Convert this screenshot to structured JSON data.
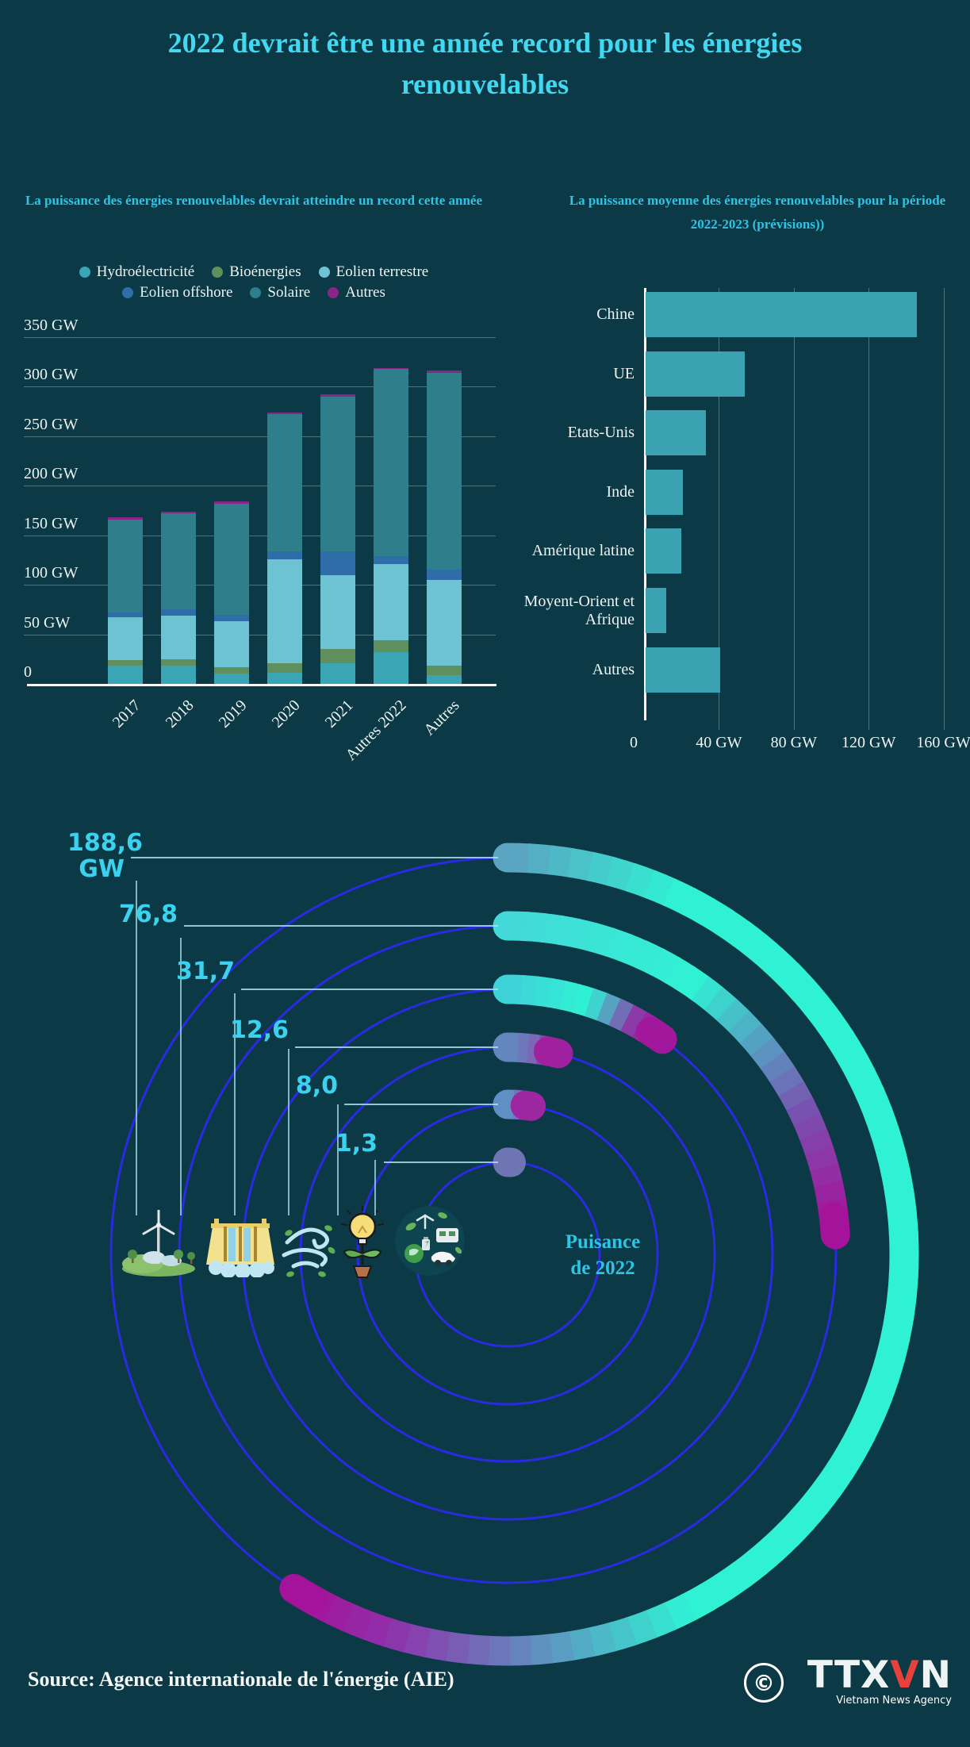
{
  "page": {
    "background": "#0b3945",
    "accent_cyan": "#41d9f2"
  },
  "header": {
    "title_line1": "2022 devrait être une année record pour les énergies",
    "title_line2": "renouvelables"
  },
  "chart_data": [
    {
      "type": "bar",
      "stacked": true,
      "title": "La puissance des énergies renouvelables devrait atteindre un record cette année",
      "categories": [
        "2017",
        "2018",
        "2019",
        "2020",
        "2021",
        "Autres 2022",
        "Autres"
      ],
      "series": [
        {
          "name": "Hydroélectricité",
          "color": "#3aa5b5",
          "values": [
            18,
            18,
            10,
            11,
            21,
            31.7,
            9
          ]
        },
        {
          "name": "Bioénergies",
          "color": "#5f8f5c",
          "values": [
            6,
            7,
            7,
            10,
            14,
            12.6,
            9
          ]
        },
        {
          "name": "Eolien terrestre",
          "color": "#6ec3d2",
          "values": [
            43,
            44,
            46,
            105,
            75,
            76.8,
            87
          ]
        },
        {
          "name": "Eolien offshore",
          "color": "#2e6da8",
          "values": [
            5,
            6,
            7,
            8,
            24,
            8,
            10
          ]
        },
        {
          "name": "Solaire",
          "color": "#2e7e8b",
          "values": [
            94,
            97,
            112,
            138,
            156,
            188.6,
            199
          ]
        },
        {
          "name": "Autres",
          "color": "#8b2489",
          "values": [
            2,
            2,
            2,
            2,
            2,
            1.3,
            2
          ]
        }
      ],
      "ylim": [
        0,
        350
      ],
      "yticks": [
        0,
        50,
        100,
        150,
        200,
        250,
        300,
        350
      ],
      "ytick_suffix": " GW",
      "grid": true,
      "legend_rows": [
        [
          "Hydroélectricité",
          "Bioénergies",
          "Eolien terrestre"
        ],
        [
          "Eolien offshore",
          "Solaire",
          "Autres"
        ]
      ]
    },
    {
      "type": "bar",
      "orientation": "horizontal",
      "title": "La puissance moyenne des énergies renouvelables pour la période 2022-2023 (prévisions))",
      "categories": [
        "Chine",
        "UE",
        "Etats-Unis",
        "Inde",
        "Amérique latine",
        "Moyent-Orient et Afrique",
        "Autres"
      ],
      "values": [
        145,
        53,
        32,
        20,
        19,
        11,
        40
      ],
      "bar_color": "#3aa2b0",
      "xlim": [
        0,
        163
      ],
      "xticks": [
        {
          "value": 0,
          "label": "0"
        },
        {
          "value": 40,
          "label": "40 GW"
        },
        {
          "value": 80,
          "label": "80 GW"
        },
        {
          "value": 120,
          "label": "120 GW"
        },
        {
          "value": 160,
          "label": "160 GW"
        }
      ],
      "grid": true
    },
    {
      "type": "radial",
      "caption_line1": "Puisance",
      "caption_line2": "de 2022",
      "unit": "GW",
      "total_gw": 319.4,
      "guide_color": "#2a2ae0",
      "items": [
        {
          "label": "188,6\nGW",
          "value": 188.6,
          "stops": [
            [
              0,
              "#5d9fc0"
            ],
            [
              0.12,
              "#2ff2d4"
            ],
            [
              0.72,
              "#2ff2d4"
            ],
            [
              0.93,
              "#8f30ab"
            ],
            [
              1,
              "#a80f99"
            ]
          ]
        },
        {
          "label": "76,8",
          "value": 76.8,
          "stops": [
            [
              0,
              "#44d8d8"
            ],
            [
              0.4,
              "#2ff2d4"
            ],
            [
              0.75,
              "#7a4fb0"
            ],
            [
              1,
              "#a80f99"
            ]
          ]
        },
        {
          "label": "31,7",
          "value": 31.7,
          "stops": [
            [
              0,
              "#3fd0d8"
            ],
            [
              0.5,
              "#2ff2d4"
            ],
            [
              0.8,
              "#8a3aa8"
            ],
            [
              1,
              "#a80f99"
            ]
          ]
        },
        {
          "label": "12,6",
          "value": 12.6,
          "stops": [
            [
              0,
              "#5d8fc0"
            ],
            [
              0.5,
              "#7a6ab8"
            ],
            [
              1,
              "#a80f99"
            ]
          ]
        },
        {
          "label": "8,0",
          "value": 8.0,
          "stops": [
            [
              0,
              "#55a0c8"
            ],
            [
              0.5,
              "#7a6ab8"
            ],
            [
              1,
              "#a80f99"
            ]
          ]
        },
        {
          "label": "1,3",
          "value": 1.3,
          "stops": [
            [
              0,
              "#35d8cc"
            ],
            [
              1,
              "#a80f99"
            ]
          ]
        }
      ],
      "icons": [
        "wind-turbine-landscape-icon",
        "hydro-dam-icon",
        "wind-swirl-icon",
        "bulb-plant-icon",
        "eco-collage-icon"
      ]
    }
  ],
  "footer": {
    "source": "Source: Agence internationale de l'énergie (AIE)",
    "copyright_symbol": "©",
    "agency": {
      "ttx": "TTX",
      "v": "V",
      "n": "N",
      "caption": "Vietnam News Agency"
    }
  }
}
